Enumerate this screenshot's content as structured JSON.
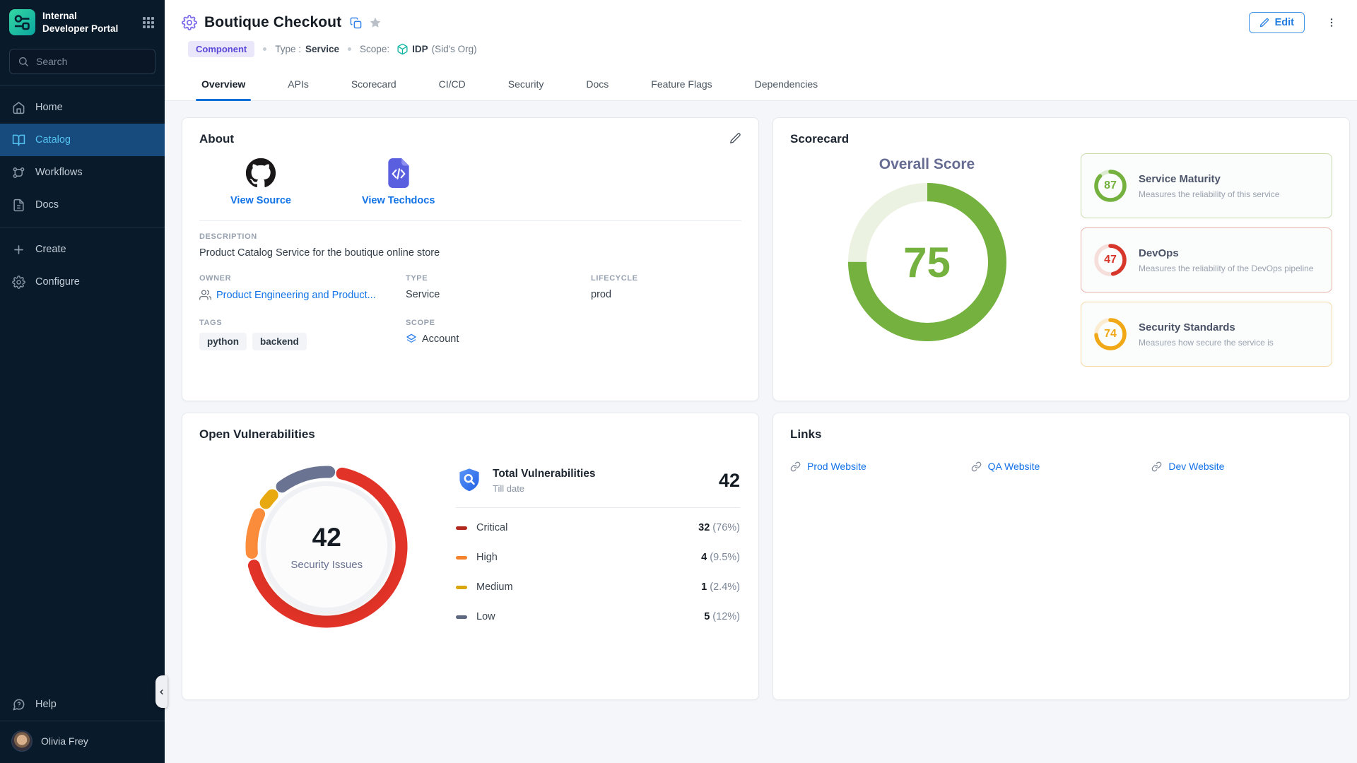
{
  "sidebar": {
    "logo_line1": "Internal",
    "logo_line2": "Developer Portal",
    "search_placeholder": "Search",
    "nav": [
      {
        "label": "Home",
        "icon": "home",
        "active": false
      },
      {
        "label": "Catalog",
        "icon": "book",
        "active": true
      },
      {
        "label": "Workflows",
        "icon": "workflow",
        "active": false
      },
      {
        "label": "Docs",
        "icon": "file",
        "active": false
      }
    ],
    "actions": [
      {
        "label": "Create",
        "icon": "plus"
      },
      {
        "label": "Configure",
        "icon": "gear"
      }
    ],
    "help_label": "Help",
    "user_name": "Olivia Frey"
  },
  "header": {
    "title": "Boutique Checkout",
    "badge": "Component",
    "type_label": "Type :",
    "type_value": "Service",
    "scope_label": "Scope:",
    "scope_name": "IDP",
    "scope_org": "(Sid's Org)",
    "edit_label": "Edit"
  },
  "tabs": [
    {
      "label": "Overview",
      "active": true
    },
    {
      "label": "APIs",
      "active": false
    },
    {
      "label": "Scorecard",
      "active": false
    },
    {
      "label": "CI/CD",
      "active": false
    },
    {
      "label": "Security",
      "active": false
    },
    {
      "label": "Docs",
      "active": false
    },
    {
      "label": "Feature Flags",
      "active": false
    },
    {
      "label": "Dependencies",
      "active": false
    }
  ],
  "about": {
    "title": "About",
    "tiles": [
      {
        "label": "View Source",
        "icon": "github"
      },
      {
        "label": "View Techdocs",
        "icon": "techdocs"
      }
    ],
    "description_label": "DESCRIPTION",
    "description": "Product Catalog Service for the boutique online store",
    "owner_label": "OWNER",
    "owner": "Product Engineering and Product...",
    "type_label": "TYPE",
    "type": "Service",
    "lifecycle_label": "LIFECYCLE",
    "lifecycle": "prod",
    "tags_label": "TAGS",
    "tags": [
      "python",
      "backend"
    ],
    "scope_label": "SCOPE",
    "scope": "Account"
  },
  "scorecard": {
    "title": "Scorecard",
    "overall_label": "Overall Score",
    "overall_score": 75,
    "overall_color": "#74b13f",
    "overall_track": "#ecf2e2",
    "items": [
      {
        "score": 87,
        "name": "Service Maturity",
        "desc": "Measures the reliability of this service",
        "color": "#74b13f",
        "track": "#dcebcf",
        "border": "#c7dcaa"
      },
      {
        "score": 47,
        "name": "DevOps",
        "desc": "Measures the reliability of the DevOps pipeline",
        "color": "#d7362a",
        "track": "#f6dedb",
        "border": "#eab1a9"
      },
      {
        "score": 74,
        "name": "Security Standards",
        "desc": "Measures how secure the service is",
        "color": "#f0a816",
        "track": "#fbecd2",
        "border": "#f3d8a0"
      }
    ]
  },
  "vulnerabilities": {
    "title": "Open Vulnerabilities",
    "donut_total": "42",
    "donut_label": "Security Issues",
    "total_title": "Total Vulnerabilities",
    "total_sub": "Till date",
    "total_value": "42",
    "severities": [
      {
        "label": "Critical",
        "count": "32",
        "pct_text": "(76%)",
        "pct": 76,
        "dash_color": "#b3281e",
        "arc_color": "#e13327"
      },
      {
        "label": "High",
        "count": "4",
        "pct_text": "(9.5%)",
        "pct": 9.5,
        "dash_color": "#f5832d",
        "arc_color": "#fb8c3c"
      },
      {
        "label": "Medium",
        "count": "1",
        "pct_text": "(2.4%)",
        "pct": 2.4,
        "dash_color": "#d9a70d",
        "arc_color": "#e7a90f"
      },
      {
        "label": "Low",
        "count": "5",
        "pct_text": "(12%)",
        "pct": 12,
        "dash_color": "#5d6880",
        "arc_color": "#6a7391"
      }
    ]
  },
  "links": {
    "title": "Links",
    "items": [
      "Prod Website",
      "QA Website",
      "Dev Website"
    ]
  }
}
